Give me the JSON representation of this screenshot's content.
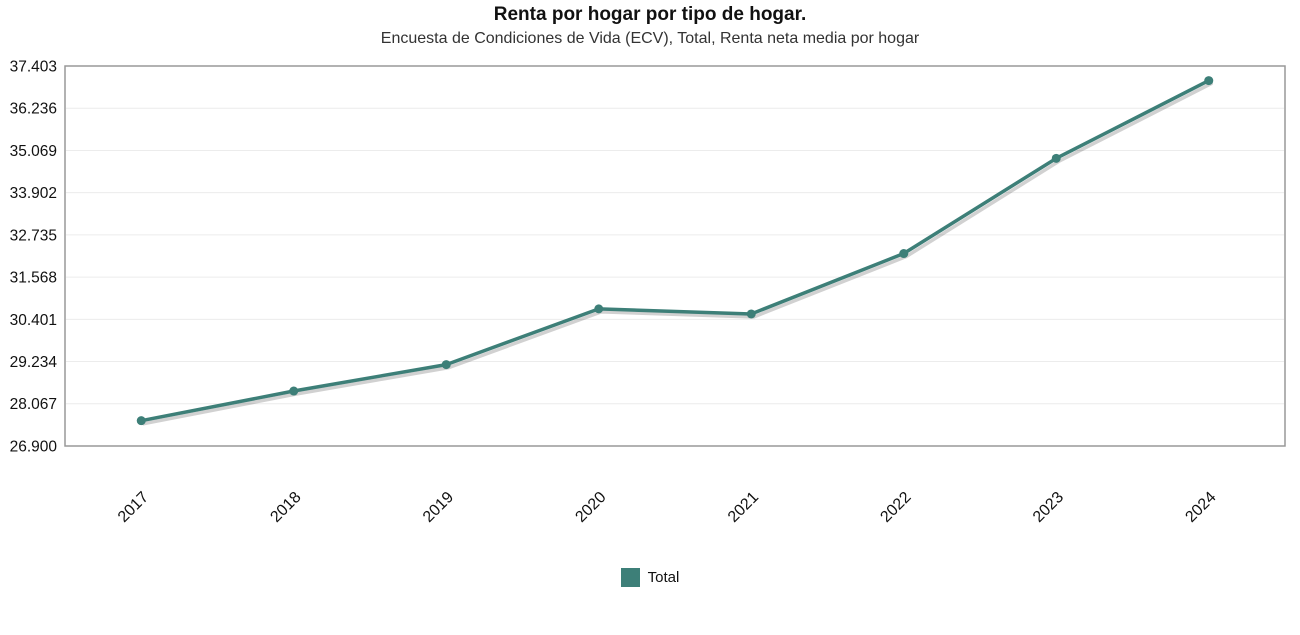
{
  "page": {
    "title": "Renta por hogar por tipo de hogar.",
    "subtitle": "Encuesta de Condiciones de Vida (ECV), Total, Renta neta media por hogar"
  },
  "legend": {
    "items": [
      {
        "label": "Total",
        "color": "#3d7f78"
      }
    ]
  },
  "chart_data": {
    "type": "line",
    "title": "Renta por hogar por tipo de hogar.",
    "subtitle": "Encuesta de Condiciones de Vida (ECV), Total, Renta neta media por hogar",
    "categories": [
      "2017",
      "2018",
      "2019",
      "2020",
      "2021",
      "2022",
      "2023",
      "2024"
    ],
    "series": [
      {
        "name": "Total",
        "color": "#3d7f78",
        "values": [
          27600,
          28420,
          29150,
          30690,
          30550,
          32220,
          34850,
          37000
        ]
      }
    ],
    "xlabel": "",
    "ylabel": "",
    "ylim": [
      26900,
      37403
    ],
    "y_ticks": [
      26900,
      28067,
      29234,
      30401,
      31568,
      32735,
      33902,
      35069,
      36236,
      37403
    ],
    "y_tick_labels": [
      "26.900",
      "28.067",
      "29.234",
      "30.401",
      "31.568",
      "32.735",
      "33.902",
      "35.069",
      "36.236",
      "37.403"
    ],
    "grid": true,
    "grid_color": "#ececec",
    "plot_border_color": "#999999",
    "legend_position": "bottom"
  }
}
